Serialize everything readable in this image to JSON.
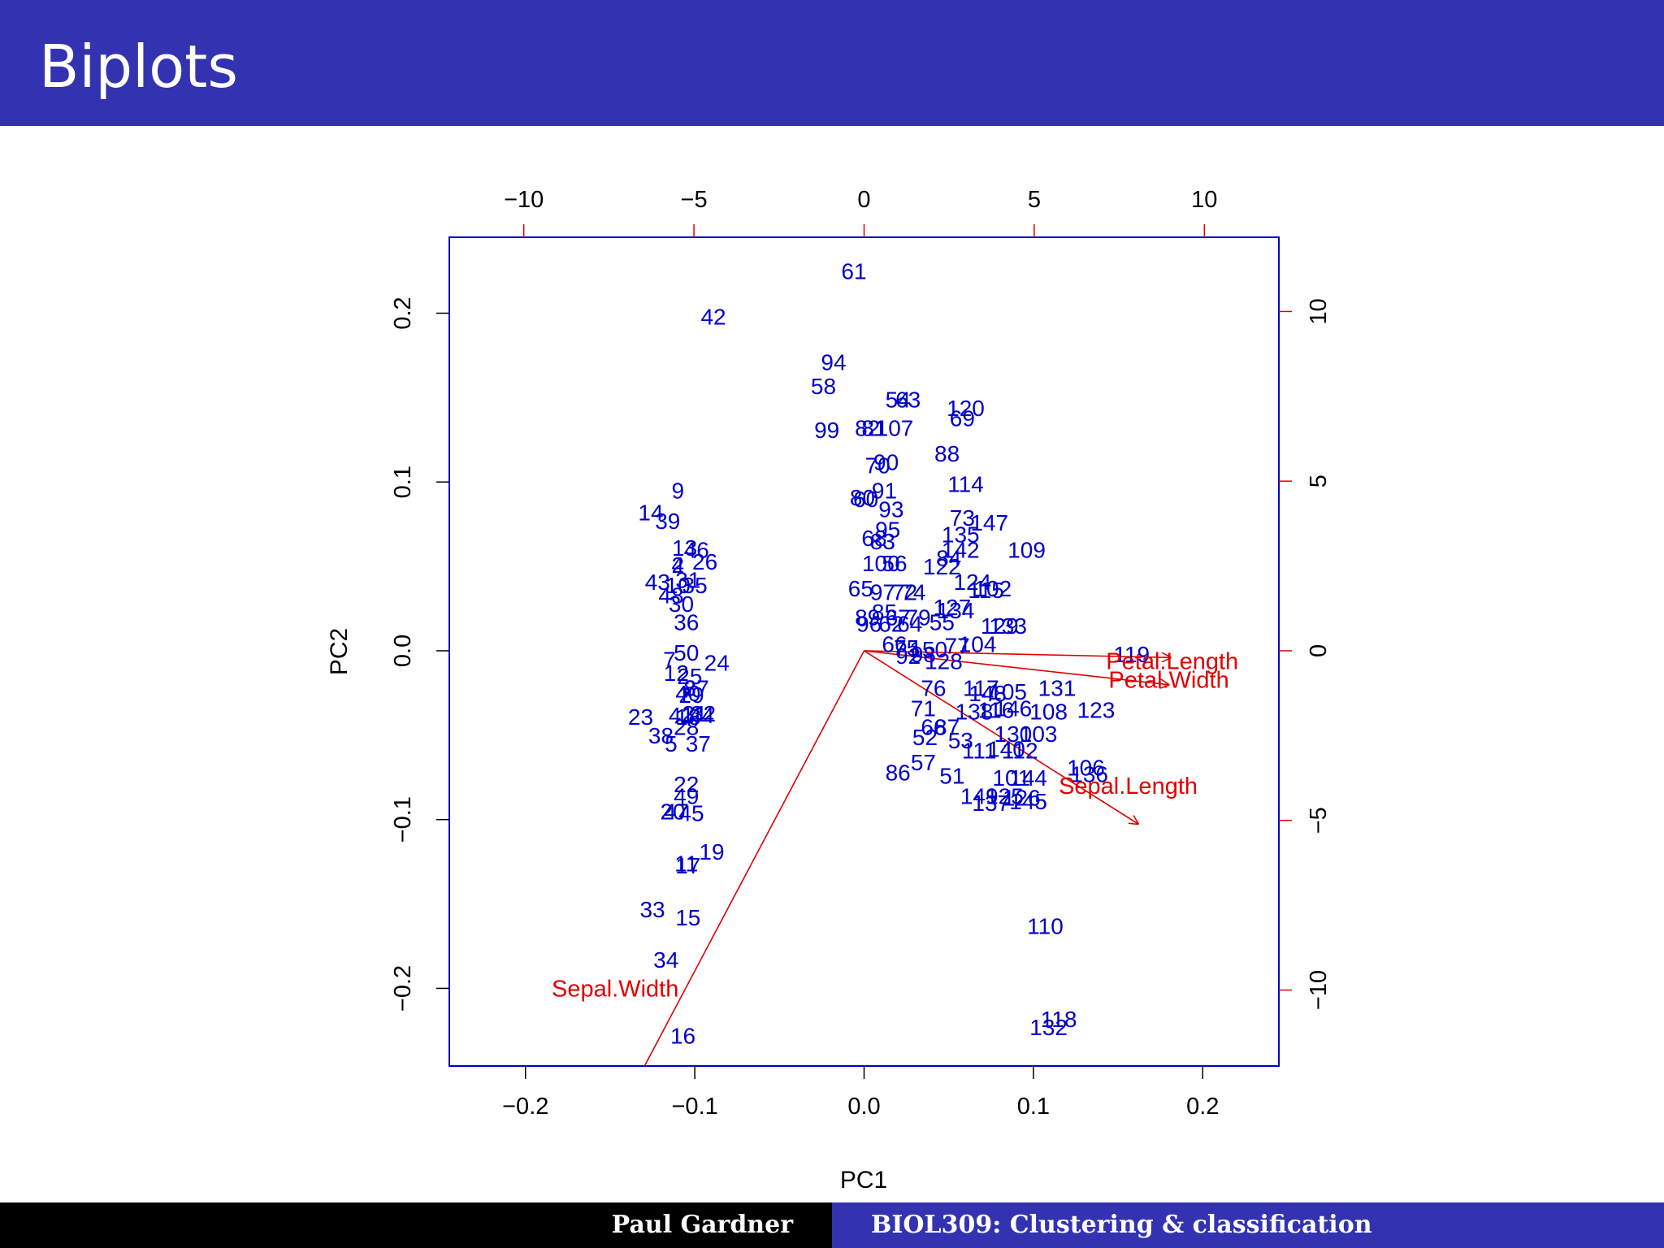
{
  "slide": {
    "title": "Biplots",
    "footer_author": "Paul Gardner",
    "footer_course": "BIOL309: Clustering & classification"
  },
  "colors": {
    "header": "#3333b2",
    "points": "#0000cc",
    "arrows": "#e00000",
    "frame": "#0000cc"
  },
  "chart_data": {
    "type": "scatter",
    "xlabel": "PC1",
    "ylabel": "PC2",
    "xlim": [
      -0.245,
      0.245
    ],
    "ylim": [
      -0.246,
      0.245
    ],
    "x_ticks": [
      "−0.2",
      "−0.1",
      "0.0",
      "0.1",
      "0.2"
    ],
    "x_tick_values": [
      -0.2,
      -0.1,
      0.0,
      0.1,
      0.2
    ],
    "y_ticks": [
      "−0.2",
      "−0.1",
      "0.0",
      "0.1",
      "0.2"
    ],
    "y_tick_values": [
      -0.2,
      -0.1,
      0.0,
      0.1,
      0.2
    ],
    "top_ticks": [
      "−10",
      "−5",
      "0",
      "5",
      "10"
    ],
    "top_tick_values": [
      -10,
      -5,
      0,
      5,
      10
    ],
    "right_ticks": [
      "−10",
      "−5",
      "0",
      "5",
      "10"
    ],
    "right_tick_values": [
      -10,
      -5,
      0,
      5,
      10
    ],
    "loading_scale": 0.0201,
    "points": [
      {
        "label": "61",
        "x": -0.006,
        "y": 0.225
      },
      {
        "label": "42",
        "x": -0.089,
        "y": 0.198
      },
      {
        "label": "94",
        "x": -0.018,
        "y": 0.171
      },
      {
        "label": "58",
        "x": -0.024,
        "y": 0.157
      },
      {
        "label": "54",
        "x": 0.02,
        "y": 0.149
      },
      {
        "label": "63",
        "x": 0.026,
        "y": 0.149
      },
      {
        "label": "120",
        "x": 0.06,
        "y": 0.144
      },
      {
        "label": "69",
        "x": 0.058,
        "y": 0.138
      },
      {
        "label": "99",
        "x": -0.022,
        "y": 0.131
      },
      {
        "label": "82",
        "x": 0.002,
        "y": 0.132
      },
      {
        "label": "81",
        "x": 0.006,
        "y": 0.132
      },
      {
        "label": "107",
        "x": 0.018,
        "y": 0.132
      },
      {
        "label": "88",
        "x": 0.049,
        "y": 0.117
      },
      {
        "label": "90",
        "x": 0.013,
        "y": 0.112
      },
      {
        "label": "70",
        "x": 0.008,
        "y": 0.11
      },
      {
        "label": "114",
        "x": 0.06,
        "y": 0.099
      },
      {
        "label": "91",
        "x": 0.012,
        "y": 0.095
      },
      {
        "label": "80",
        "x": -0.001,
        "y": 0.091
      },
      {
        "label": "60",
        "x": 0.001,
        "y": 0.09
      },
      {
        "label": "93",
        "x": 0.016,
        "y": 0.084
      },
      {
        "label": "73",
        "x": 0.058,
        "y": 0.079
      },
      {
        "label": "147",
        "x": 0.074,
        "y": 0.076
      },
      {
        "label": "95",
        "x": 0.014,
        "y": 0.072
      },
      {
        "label": "135",
        "x": 0.057,
        "y": 0.069
      },
      {
        "label": "68",
        "x": 0.006,
        "y": 0.067
      },
      {
        "label": "83",
        "x": 0.011,
        "y": 0.065
      },
      {
        "label": "109",
        "x": 0.096,
        "y": 0.06
      },
      {
        "label": "142",
        "x": 0.057,
        "y": 0.06
      },
      {
        "label": "84",
        "x": 0.05,
        "y": 0.055
      },
      {
        "label": "100",
        "x": 0.01,
        "y": 0.052
      },
      {
        "label": "56",
        "x": 0.018,
        "y": 0.052
      },
      {
        "label": "122",
        "x": 0.046,
        "y": 0.05
      },
      {
        "label": "124",
        "x": 0.064,
        "y": 0.041
      },
      {
        "label": "115",
        "x": 0.072,
        "y": 0.036
      },
      {
        "label": "102",
        "x": 0.076,
        "y": 0.037
      },
      {
        "label": "65",
        "x": -0.002,
        "y": 0.037
      },
      {
        "label": "97",
        "x": 0.011,
        "y": 0.035
      },
      {
        "label": "74",
        "x": 0.029,
        "y": 0.035
      },
      {
        "label": "72",
        "x": 0.024,
        "y": 0.035
      },
      {
        "label": "127",
        "x": 0.052,
        "y": 0.026
      },
      {
        "label": "134",
        "x": 0.054,
        "y": 0.024
      },
      {
        "label": "85",
        "x": 0.012,
        "y": 0.023
      },
      {
        "label": "67",
        "x": 0.02,
        "y": 0.02
      },
      {
        "label": "79",
        "x": 0.032,
        "y": 0.02
      },
      {
        "label": "129",
        "x": 0.08,
        "y": 0.015
      },
      {
        "label": "133",
        "x": 0.085,
        "y": 0.015
      },
      {
        "label": "89",
        "x": 0.002,
        "y": 0.02
      },
      {
        "label": "96",
        "x": 0.003,
        "y": 0.016
      },
      {
        "label": "62",
        "x": 0.016,
        "y": 0.016
      },
      {
        "label": "64",
        "x": 0.027,
        "y": 0.016
      },
      {
        "label": "55",
        "x": 0.046,
        "y": 0.017
      },
      {
        "label": "77",
        "x": 0.055,
        "y": 0.003
      },
      {
        "label": "104",
        "x": 0.067,
        "y": 0.004
      },
      {
        "label": "66",
        "x": 0.018,
        "y": 0.004
      },
      {
        "label": "75",
        "x": 0.025,
        "y": 0.002
      },
      {
        "label": "150",
        "x": 0.038,
        "y": 0.001
      },
      {
        "label": "98",
        "x": 0.035,
        "y": -0.002
      },
      {
        "label": "92",
        "x": 0.026,
        "y": -0.003
      },
      {
        "label": "128",
        "x": 0.047,
        "y": -0.006
      },
      {
        "label": "119",
        "x": 0.158,
        "y": -0.002
      },
      {
        "label": "76",
        "x": 0.041,
        "y": -0.022
      },
      {
        "label": "117",
        "x": 0.069,
        "y": -0.022
      },
      {
        "label": "148",
        "x": 0.073,
        "y": -0.025
      },
      {
        "label": "105",
        "x": 0.085,
        "y": -0.024
      },
      {
        "label": "131",
        "x": 0.114,
        "y": -0.022
      },
      {
        "label": "71",
        "x": 0.035,
        "y": -0.034
      },
      {
        "label": "138",
        "x": 0.065,
        "y": -0.036
      },
      {
        "label": "116",
        "x": 0.078,
        "y": -0.035
      },
      {
        "label": "146",
        "x": 0.088,
        "y": -0.034
      },
      {
        "label": "108",
        "x": 0.109,
        "y": -0.036
      },
      {
        "label": "123",
        "x": 0.137,
        "y": -0.035
      },
      {
        "label": "87",
        "x": 0.049,
        "y": -0.045
      },
      {
        "label": "66",
        "x": 0.041,
        "y": -0.045
      },
      {
        "label": "52",
        "x": 0.036,
        "y": -0.051
      },
      {
        "label": "53",
        "x": 0.057,
        "y": -0.053
      },
      {
        "label": "130",
        "x": 0.088,
        "y": -0.049
      },
      {
        "label": "103",
        "x": 0.103,
        "y": -0.049
      },
      {
        "label": "111",
        "x": 0.068,
        "y": -0.059
      },
      {
        "label": "140",
        "x": 0.084,
        "y": -0.058
      },
      {
        "label": "112",
        "x": 0.092,
        "y": -0.059
      },
      {
        "label": "57",
        "x": 0.035,
        "y": -0.066
      },
      {
        "label": "106",
        "x": 0.131,
        "y": -0.069
      },
      {
        "label": "136",
        "x": 0.133,
        "y": -0.073
      },
      {
        "label": "86",
        "x": 0.02,
        "y": -0.072
      },
      {
        "label": "51",
        "x": 0.052,
        "y": -0.074
      },
      {
        "label": "101",
        "x": 0.087,
        "y": -0.075
      },
      {
        "label": "144",
        "x": 0.097,
        "y": -0.075
      },
      {
        "label": "149",
        "x": 0.068,
        "y": -0.086
      },
      {
        "label": "125",
        "x": 0.083,
        "y": -0.086
      },
      {
        "label": "126",
        "x": 0.093,
        "y": -0.087
      },
      {
        "label": "137",
        "x": 0.075,
        "y": -0.09
      },
      {
        "label": "145",
        "x": 0.097,
        "y": -0.089
      },
      {
        "label": "110",
        "x": 0.107,
        "y": -0.163
      },
      {
        "label": "118",
        "x": 0.115,
        "y": -0.218
      },
      {
        "label": "132",
        "x": 0.109,
        "y": -0.223
      },
      {
        "label": "9",
        "x": -0.11,
        "y": 0.095
      },
      {
        "label": "14",
        "x": -0.126,
        "y": 0.082
      },
      {
        "label": "39",
        "x": -0.116,
        "y": 0.077
      },
      {
        "label": "13",
        "x": -0.106,
        "y": 0.061
      },
      {
        "label": "46",
        "x": -0.099,
        "y": 0.06
      },
      {
        "label": "2",
        "x": -0.11,
        "y": 0.051
      },
      {
        "label": "26",
        "x": -0.094,
        "y": 0.053
      },
      {
        "label": "4",
        "x": -0.11,
        "y": 0.051
      },
      {
        "label": "43",
        "x": -0.122,
        "y": 0.041
      },
      {
        "label": "31",
        "x": -0.104,
        "y": 0.042
      },
      {
        "label": "35",
        "x": -0.1,
        "y": 0.039
      },
      {
        "label": "10",
        "x": -0.11,
        "y": 0.039
      },
      {
        "label": "48",
        "x": -0.114,
        "y": 0.033
      },
      {
        "label": "30",
        "x": -0.108,
        "y": 0.028
      },
      {
        "label": "36",
        "x": -0.105,
        "y": 0.017
      },
      {
        "label": "50",
        "x": -0.105,
        "y": -0.001
      },
      {
        "label": "7",
        "x": -0.115,
        "y": -0.005
      },
      {
        "label": "24",
        "x": -0.087,
        "y": -0.007
      },
      {
        "label": "12",
        "x": -0.111,
        "y": -0.013
      },
      {
        "label": "25",
        "x": -0.103,
        "y": -0.015
      },
      {
        "label": "8",
        "x": -0.103,
        "y": -0.022
      },
      {
        "label": "27",
        "x": -0.099,
        "y": -0.022
      },
      {
        "label": "40",
        "x": -0.104,
        "y": -0.025
      },
      {
        "label": "29",
        "x": -0.102,
        "y": -0.026
      },
      {
        "label": "23",
        "x": -0.132,
        "y": -0.039
      },
      {
        "label": "41",
        "x": -0.108,
        "y": -0.038
      },
      {
        "label": "18",
        "x": -0.104,
        "y": -0.039
      },
      {
        "label": "44",
        "x": -0.096,
        "y": -0.038
      },
      {
        "label": "21",
        "x": -0.1,
        "y": -0.037
      },
      {
        "label": "32",
        "x": -0.095,
        "y": -0.037
      },
      {
        "label": "28",
        "x": -0.105,
        "y": -0.045
      },
      {
        "label": "38",
        "x": -0.12,
        "y": -0.05
      },
      {
        "label": "5",
        "x": -0.114,
        "y": -0.055
      },
      {
        "label": "37",
        "x": -0.098,
        "y": -0.055
      },
      {
        "label": "22",
        "x": -0.105,
        "y": -0.079
      },
      {
        "label": "49",
        "x": -0.105,
        "y": -0.086
      },
      {
        "label": "20",
        "x": -0.113,
        "y": -0.095
      },
      {
        "label": "47",
        "x": -0.111,
        "y": -0.095
      },
      {
        "label": "45",
        "x": -0.102,
        "y": -0.096
      },
      {
        "label": "11",
        "x": -0.105,
        "y": -0.126
      },
      {
        "label": "19",
        "x": -0.09,
        "y": -0.119
      },
      {
        "label": "17",
        "x": -0.104,
        "y": -0.127
      },
      {
        "label": "33",
        "x": -0.125,
        "y": -0.153
      },
      {
        "label": "15",
        "x": -0.104,
        "y": -0.158
      },
      {
        "label": "34",
        "x": -0.117,
        "y": -0.183
      },
      {
        "label": "16",
        "x": -0.107,
        "y": -0.228
      }
    ],
    "loadings": [
      {
        "name": "Petal.Length",
        "x": 9.0,
        "y": -0.2,
        "label_x": 0.182,
        "label_y": -0.006
      },
      {
        "name": "Petal.Width",
        "x": 8.95,
        "y": -1.0,
        "label_x": 0.18,
        "label_y": -0.017
      },
      {
        "name": "Sepal.Length",
        "x": 8.05,
        "y": -5.1,
        "label_x": 0.156,
        "label_y": -0.08
      },
      {
        "name": "Sepal.Width",
        "x": -6.8,
        "y": -12.9,
        "label_x": -0.147,
        "label_y": -0.2
      }
    ]
  }
}
